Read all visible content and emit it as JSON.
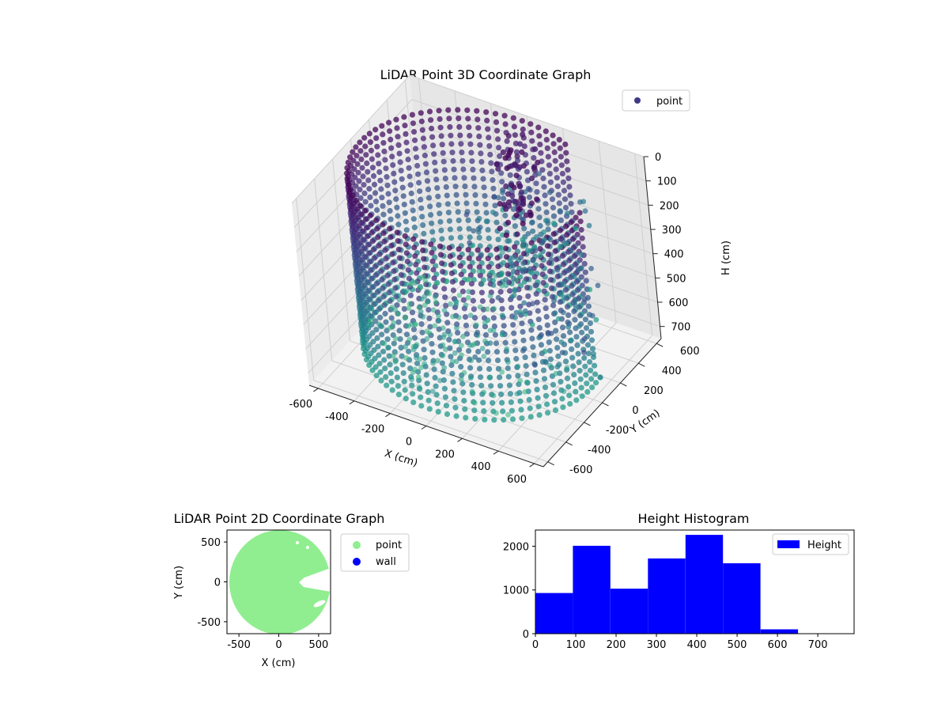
{
  "chart_data": [
    {
      "type": "scatter",
      "title": "LiDAR Point 3D Coordinate Graph",
      "xlabel": "X (cm)",
      "ylabel": "Y (cm)",
      "zlabel": "H (cm)",
      "xlim": [
        -650,
        650
      ],
      "ylim": [
        -650,
        650
      ],
      "zlim": [
        750,
        0
      ],
      "xticks": [
        -600,
        -400,
        -200,
        0,
        200,
        400,
        600
      ],
      "yticks": [
        -600,
        -400,
        -200,
        0,
        200,
        400,
        600
      ],
      "zticks": [
        0,
        100,
        200,
        300,
        400,
        500,
        600,
        700
      ],
      "legend": {
        "position": "top-right",
        "entries": [
          {
            "label": "point",
            "color": "#3e3a86"
          }
        ]
      },
      "colormap": "viridis",
      "series": [
        {
          "name": "point",
          "kind": "cylindrical-wall",
          "radius_cm": 600,
          "height_range": [
            0,
            700
          ]
        },
        {
          "name": "point",
          "kind": "interior-scatter"
        },
        {
          "name": "point",
          "kind": "outlier",
          "x": 520,
          "y": 380,
          "h": 700
        }
      ],
      "grid": true
    },
    {
      "type": "scatter",
      "title": "LiDAR Point 2D Coordinate Graph",
      "xlabel": "X (cm)",
      "ylabel": "Y (cm)",
      "xlim": [
        -650,
        650
      ],
      "ylim": [
        -650,
        650
      ],
      "xticks": [
        -500,
        0,
        500
      ],
      "yticks": [
        -500,
        0,
        500
      ],
      "legend": {
        "position": "outside-right",
        "entries": [
          {
            "label": "point",
            "color": "#90ee90"
          },
          {
            "label": "wall",
            "color": "#0000ff"
          }
        ]
      }
    },
    {
      "type": "bar",
      "title": "Height Histogram",
      "xlabel": "",
      "ylabel": "",
      "bin_edges": [
        0,
        93,
        186,
        279,
        372,
        465,
        558,
        651,
        744
      ],
      "values": [
        930,
        2010,
        1030,
        1720,
        2260,
        1610,
        100,
        0
      ],
      "xlim": [
        0,
        790
      ],
      "ylim": [
        0,
        2370
      ],
      "xticks": [
        0,
        100,
        200,
        300,
        400,
        500,
        600,
        700
      ],
      "yticks": [
        0,
        1000,
        2000
      ],
      "color": "#0000ff",
      "legend": {
        "position": "top-right",
        "entries": [
          {
            "label": "Height",
            "color": "#0000ff"
          }
        ]
      }
    }
  ]
}
